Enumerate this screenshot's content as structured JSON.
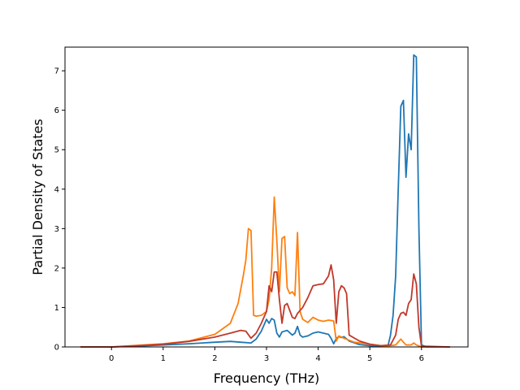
{
  "chart_data": {
    "type": "line",
    "title": "",
    "xlabel": "Frequency (THz)",
    "ylabel": "Partial Density of States",
    "xlim": [
      -0.9,
      6.9
    ],
    "ylim": [
      0,
      7.6
    ],
    "xticks": [
      0,
      1,
      2,
      3,
      4,
      5,
      6
    ],
    "yticks": [
      0,
      1,
      2,
      3,
      4,
      5,
      6,
      7
    ],
    "grid": false,
    "legend": "none",
    "series": [
      {
        "color": "#1f77b4",
        "x": [
          -0.6,
          0,
          0.5,
          1.0,
          1.5,
          2.0,
          2.3,
          2.5,
          2.7,
          2.8,
          2.9,
          3.0,
          3.05,
          3.1,
          3.15,
          3.2,
          3.25,
          3.3,
          3.4,
          3.5,
          3.55,
          3.6,
          3.65,
          3.7,
          3.8,
          3.9,
          4.0,
          4.1,
          4.2,
          4.25,
          4.3,
          4.35,
          4.4,
          4.45,
          4.5,
          4.6,
          4.8,
          5.0,
          5.2,
          5.35,
          5.4,
          5.45,
          5.5,
          5.55,
          5.6,
          5.65,
          5.7,
          5.75,
          5.8,
          5.85,
          5.9,
          5.95,
          6.0,
          6.1,
          6.55
        ],
        "y": [
          0,
          0,
          0.02,
          0.05,
          0.08,
          0.12,
          0.14,
          0.12,
          0.1,
          0.2,
          0.4,
          0.7,
          0.6,
          0.72,
          0.68,
          0.35,
          0.25,
          0.38,
          0.42,
          0.3,
          0.35,
          0.52,
          0.3,
          0.25,
          0.28,
          0.35,
          0.38,
          0.35,
          0.32,
          0.22,
          0.08,
          0.22,
          0.26,
          0.24,
          0.26,
          0.15,
          0.06,
          0.03,
          0.01,
          0.02,
          0.3,
          0.8,
          1.8,
          4.0,
          6.1,
          6.25,
          4.3,
          5.4,
          5.0,
          7.4,
          7.35,
          3.0,
          0.05,
          0,
          0
        ]
      },
      {
        "color": "#ff7f0e",
        "x": [
          -0.6,
          0,
          0.5,
          1.0,
          1.5,
          2.0,
          2.3,
          2.45,
          2.55,
          2.6,
          2.65,
          2.7,
          2.75,
          2.8,
          2.9,
          3.0,
          3.05,
          3.1,
          3.15,
          3.2,
          3.25,
          3.3,
          3.35,
          3.4,
          3.45,
          3.5,
          3.55,
          3.6,
          3.65,
          3.7,
          3.8,
          3.9,
          4.0,
          4.1,
          4.2,
          4.3,
          4.35,
          4.4,
          4.5,
          4.7,
          5.0,
          5.3,
          5.5,
          5.6,
          5.65,
          5.7,
          5.8,
          5.85,
          5.9,
          6.0,
          6.55
        ],
        "y": [
          0,
          0,
          0.04,
          0.08,
          0.15,
          0.32,
          0.6,
          1.1,
          1.8,
          2.2,
          3.0,
          2.95,
          0.8,
          0.78,
          0.8,
          0.9,
          1.2,
          2.0,
          3.8,
          2.7,
          1.4,
          2.75,
          2.8,
          1.5,
          1.35,
          1.4,
          1.3,
          2.9,
          0.9,
          0.7,
          0.62,
          0.75,
          0.68,
          0.65,
          0.68,
          0.66,
          0.15,
          0.28,
          0.22,
          0.12,
          0.07,
          0.02,
          0.05,
          0.2,
          0.12,
          0.05,
          0.05,
          0.1,
          0.05,
          0,
          0
        ]
      },
      {
        "color": "#c0392b",
        "x": [
          -0.6,
          0,
          0.5,
          1.0,
          1.5,
          2.0,
          2.3,
          2.5,
          2.6,
          2.7,
          2.8,
          2.9,
          3.0,
          3.05,
          3.1,
          3.15,
          3.2,
          3.25,
          3.3,
          3.35,
          3.4,
          3.5,
          3.55,
          3.6,
          3.7,
          3.8,
          3.9,
          4.0,
          4.1,
          4.2,
          4.25,
          4.3,
          4.35,
          4.4,
          4.45,
          4.5,
          4.55,
          4.6,
          4.8,
          5.0,
          5.2,
          5.4,
          5.5,
          5.55,
          5.6,
          5.65,
          5.7,
          5.75,
          5.8,
          5.85,
          5.9,
          5.95,
          6.0,
          6.55
        ],
        "y": [
          0,
          0,
          0.03,
          0.07,
          0.14,
          0.25,
          0.35,
          0.42,
          0.4,
          0.22,
          0.35,
          0.6,
          0.9,
          1.55,
          1.4,
          1.9,
          1.9,
          1.2,
          0.6,
          1.05,
          1.1,
          0.75,
          0.72,
          0.85,
          1.0,
          1.25,
          1.55,
          1.58,
          1.6,
          1.8,
          2.08,
          1.7,
          0.6,
          1.4,
          1.55,
          1.5,
          1.35,
          0.3,
          0.15,
          0.07,
          0.03,
          0.05,
          0.3,
          0.7,
          0.85,
          0.88,
          0.8,
          1.1,
          1.2,
          1.85,
          1.6,
          0.5,
          0.02,
          0
        ]
      }
    ]
  }
}
